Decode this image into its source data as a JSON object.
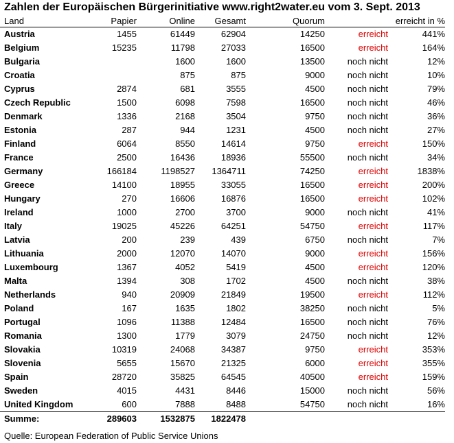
{
  "title": "Zahlen der Europäischen Bürgerinitiative www.right2water.eu vom 3. Sept. 2013",
  "headers": {
    "land": "Land",
    "papier": "Papier",
    "online": "Online",
    "gesamt": "Gesamt",
    "quorum": "Quorum",
    "status": "",
    "pct": "erreicht in %"
  },
  "colors": {
    "reached": "#e00000",
    "not_reached": "#000000"
  },
  "rows": [
    {
      "land": "Austria",
      "papier": "1455",
      "online": "61449",
      "gesamt": "62904",
      "quorum": "14250",
      "status": "erreicht",
      "pct": "441%"
    },
    {
      "land": "Belgium",
      "papier": "15235",
      "online": "11798",
      "gesamt": "27033",
      "quorum": "16500",
      "status": "erreicht",
      "pct": "164%"
    },
    {
      "land": "Bulgaria",
      "papier": "",
      "online": "1600",
      "gesamt": "1600",
      "quorum": "13500",
      "status": "noch nicht",
      "pct": "12%"
    },
    {
      "land": "Croatia",
      "papier": "",
      "online": "875",
      "gesamt": "875",
      "quorum": "9000",
      "status": "noch nicht",
      "pct": "10%"
    },
    {
      "land": "Cyprus",
      "papier": "2874",
      "online": "681",
      "gesamt": "3555",
      "quorum": "4500",
      "status": "noch nicht",
      "pct": "79%"
    },
    {
      "land": "Czech Republic",
      "papier": "1500",
      "online": "6098",
      "gesamt": "7598",
      "quorum": "16500",
      "status": "noch nicht",
      "pct": "46%"
    },
    {
      "land": "Denmark",
      "papier": "1336",
      "online": "2168",
      "gesamt": "3504",
      "quorum": "9750",
      "status": "noch nicht",
      "pct": "36%"
    },
    {
      "land": "Estonia",
      "papier": "287",
      "online": "944",
      "gesamt": "1231",
      "quorum": "4500",
      "status": "noch nicht",
      "pct": "27%"
    },
    {
      "land": "Finland",
      "papier": "6064",
      "online": "8550",
      "gesamt": "14614",
      "quorum": "9750",
      "status": "erreicht",
      "pct": "150%"
    },
    {
      "land": "France",
      "papier": "2500",
      "online": "16436",
      "gesamt": "18936",
      "quorum": "55500",
      "status": "noch nicht",
      "pct": "34%"
    },
    {
      "land": "Germany",
      "papier": "166184",
      "online": "1198527",
      "gesamt": "1364711",
      "quorum": "74250",
      "status": "erreicht",
      "pct": "1838%"
    },
    {
      "land": "Greece",
      "papier": "14100",
      "online": "18955",
      "gesamt": "33055",
      "quorum": "16500",
      "status": "erreicht",
      "pct": "200%"
    },
    {
      "land": "Hungary",
      "papier": "270",
      "online": "16606",
      "gesamt": "16876",
      "quorum": "16500",
      "status": "erreicht",
      "pct": "102%"
    },
    {
      "land": "Ireland",
      "papier": "1000",
      "online": "2700",
      "gesamt": "3700",
      "quorum": "9000",
      "status": "noch nicht",
      "pct": "41%"
    },
    {
      "land": "Italy",
      "papier": "19025",
      "online": "45226",
      "gesamt": "64251",
      "quorum": "54750",
      "status": "erreicht",
      "pct": "117%"
    },
    {
      "land": "Latvia",
      "papier": "200",
      "online": "239",
      "gesamt": "439",
      "quorum": "6750",
      "status": "noch nicht",
      "pct": "7%"
    },
    {
      "land": "Lithuania",
      "papier": "2000",
      "online": "12070",
      "gesamt": "14070",
      "quorum": "9000",
      "status": "erreicht",
      "pct": "156%"
    },
    {
      "land": "Luxembourg",
      "papier": "1367",
      "online": "4052",
      "gesamt": "5419",
      "quorum": "4500",
      "status": "erreicht",
      "pct": "120%"
    },
    {
      "land": "Malta",
      "papier": "1394",
      "online": "308",
      "gesamt": "1702",
      "quorum": "4500",
      "status": "noch nicht",
      "pct": "38%"
    },
    {
      "land": "Netherlands",
      "papier": "940",
      "online": "20909",
      "gesamt": "21849",
      "quorum": "19500",
      "status": "erreicht",
      "pct": "112%"
    },
    {
      "land": "Poland",
      "papier": "167",
      "online": "1635",
      "gesamt": "1802",
      "quorum": "38250",
      "status": "noch nicht",
      "pct": "5%"
    },
    {
      "land": "Portugal",
      "papier": "1096",
      "online": "11388",
      "gesamt": "12484",
      "quorum": "16500",
      "status": "noch nicht",
      "pct": "76%"
    },
    {
      "land": "Romania",
      "papier": "1300",
      "online": "1779",
      "gesamt": "3079",
      "quorum": "24750",
      "status": "noch nicht",
      "pct": "12%"
    },
    {
      "land": "Slovakia",
      "papier": "10319",
      "online": "24068",
      "gesamt": "34387",
      "quorum": "9750",
      "status": "erreicht",
      "pct": "353%"
    },
    {
      "land": "Slovenia",
      "papier": "5655",
      "online": "15670",
      "gesamt": "21325",
      "quorum": "6000",
      "status": "erreicht",
      "pct": "355%"
    },
    {
      "land": "Spain",
      "papier": "28720",
      "online": "35825",
      "gesamt": "64545",
      "quorum": "40500",
      "status": "erreicht",
      "pct": "159%"
    },
    {
      "land": "Sweden",
      "papier": "4015",
      "online": "4431",
      "gesamt": "8446",
      "quorum": "15000",
      "status": "noch nicht",
      "pct": "56%"
    },
    {
      "land": "United Kingdom",
      "papier": "600",
      "online": "7888",
      "gesamt": "8488",
      "quorum": "54750",
      "status": "noch nicht",
      "pct": "16%"
    }
  ],
  "summary": {
    "label": "Summe:",
    "papier": "289603",
    "online": "1532875",
    "gesamt": "1822478"
  },
  "source": "Quelle:  European Federation of Public Service Unions"
}
